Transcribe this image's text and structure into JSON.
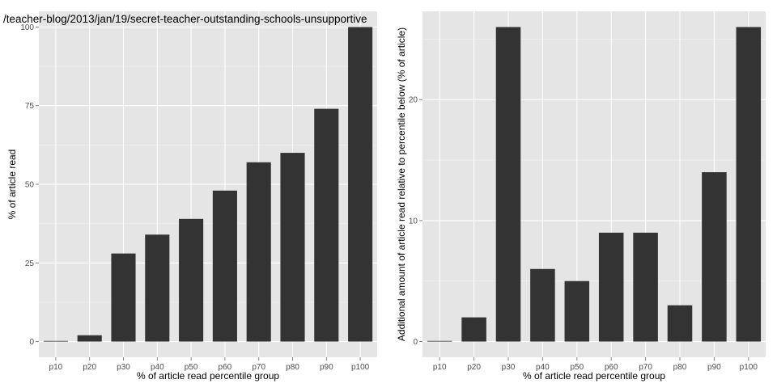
{
  "colors": {
    "panel_background": "#e5e5e5",
    "grid_major": "#ffffff",
    "grid_minor": "#f2f2f2",
    "bar_fill": "#333333",
    "tick_text": "#4d4d4d"
  },
  "chart_data": [
    {
      "type": "bar",
      "title": "/teacher-blog/2013/jan/19/secret-teacher-outstanding-schools-unsupportive",
      "xlabel": "% of article read percentile group",
      "ylabel": "% of article read",
      "categories": [
        "p10",
        "p20",
        "p30",
        "p40",
        "p50",
        "p60",
        "p70",
        "p80",
        "p90",
        "p100"
      ],
      "values": [
        0,
        2,
        28,
        34,
        39,
        48,
        57,
        60,
        74,
        100
      ],
      "yticks": [
        0,
        25,
        50,
        75,
        100
      ],
      "ylim": [
        -5,
        105
      ],
      "grid": true,
      "legend": "none"
    },
    {
      "type": "bar",
      "title": "",
      "xlabel": "% of article read percentile group",
      "ylabel": "Additional amount of article read relative to percentile below (% of article)",
      "categories": [
        "p10",
        "p20",
        "p30",
        "p40",
        "p50",
        "p60",
        "p70",
        "p80",
        "p90",
        "p100"
      ],
      "values": [
        0,
        2,
        26,
        6,
        5,
        9,
        9,
        3,
        14,
        26
      ],
      "yticks": [
        0,
        10,
        20
      ],
      "ylim": [
        -1.3,
        27.3
      ],
      "grid": true,
      "legend": "none"
    }
  ]
}
